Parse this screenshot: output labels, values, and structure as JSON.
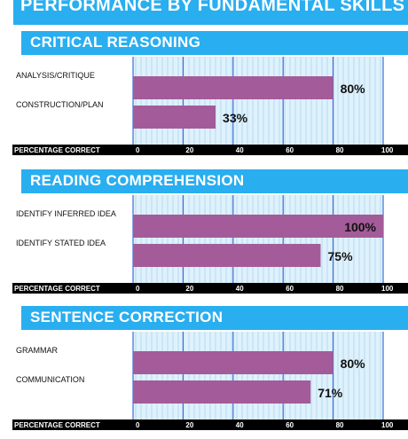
{
  "page_title": "PERFORMANCE BY FUNDAMENTAL SKILLS",
  "colors": {
    "header": "#29aef0",
    "bar": "#a45b99",
    "plot_bg": "#dff1fb",
    "stripe": "#bcdff3",
    "gridline": "#3f6fd8",
    "axis_band": "#000000"
  },
  "chart_data": [
    {
      "type": "bar",
      "orientation": "horizontal",
      "title": "CRITICAL REASONING",
      "categories": [
        "ANALYSIS/CRITIQUE",
        "CONSTRUCTION/PLAN"
      ],
      "values": [
        80,
        33
      ],
      "value_labels": [
        "80%",
        "33%"
      ],
      "xlabel": "PERCENTAGE CORRECT",
      "xlim": [
        0,
        100
      ],
      "xticks": [
        0,
        20,
        40,
        60,
        80,
        100
      ],
      "tick_labels": [
        "0",
        "20",
        "40",
        "60",
        "80",
        "100"
      ],
      "grid": true,
      "legend": "none"
    },
    {
      "type": "bar",
      "orientation": "horizontal",
      "title": "READING COMPREHENSION",
      "categories": [
        "IDENTIFY INFERRED IDEA",
        "IDENTIFY STATED IDEA"
      ],
      "values": [
        100,
        75
      ],
      "value_labels": [
        "100%",
        "75%"
      ],
      "xlabel": "PERCENTAGE CORRECT",
      "xlim": [
        0,
        100
      ],
      "xticks": [
        0,
        20,
        40,
        60,
        80,
        100
      ],
      "tick_labels": [
        "0",
        "20",
        "40",
        "60",
        "80",
        "100"
      ],
      "grid": true,
      "legend": "none"
    },
    {
      "type": "bar",
      "orientation": "horizontal",
      "title": "SENTENCE CORRECTION",
      "categories": [
        "GRAMMAR",
        "COMMUNICATION"
      ],
      "values": [
        80,
        71
      ],
      "value_labels": [
        "80%",
        "71%"
      ],
      "xlabel": "PERCENTAGE CORRECT",
      "xlim": [
        0,
        100
      ],
      "xticks": [
        0,
        20,
        40,
        60,
        80,
        100
      ],
      "tick_labels": [
        "0",
        "20",
        "40",
        "60",
        "80",
        "100"
      ],
      "grid": true,
      "legend": "none"
    }
  ]
}
